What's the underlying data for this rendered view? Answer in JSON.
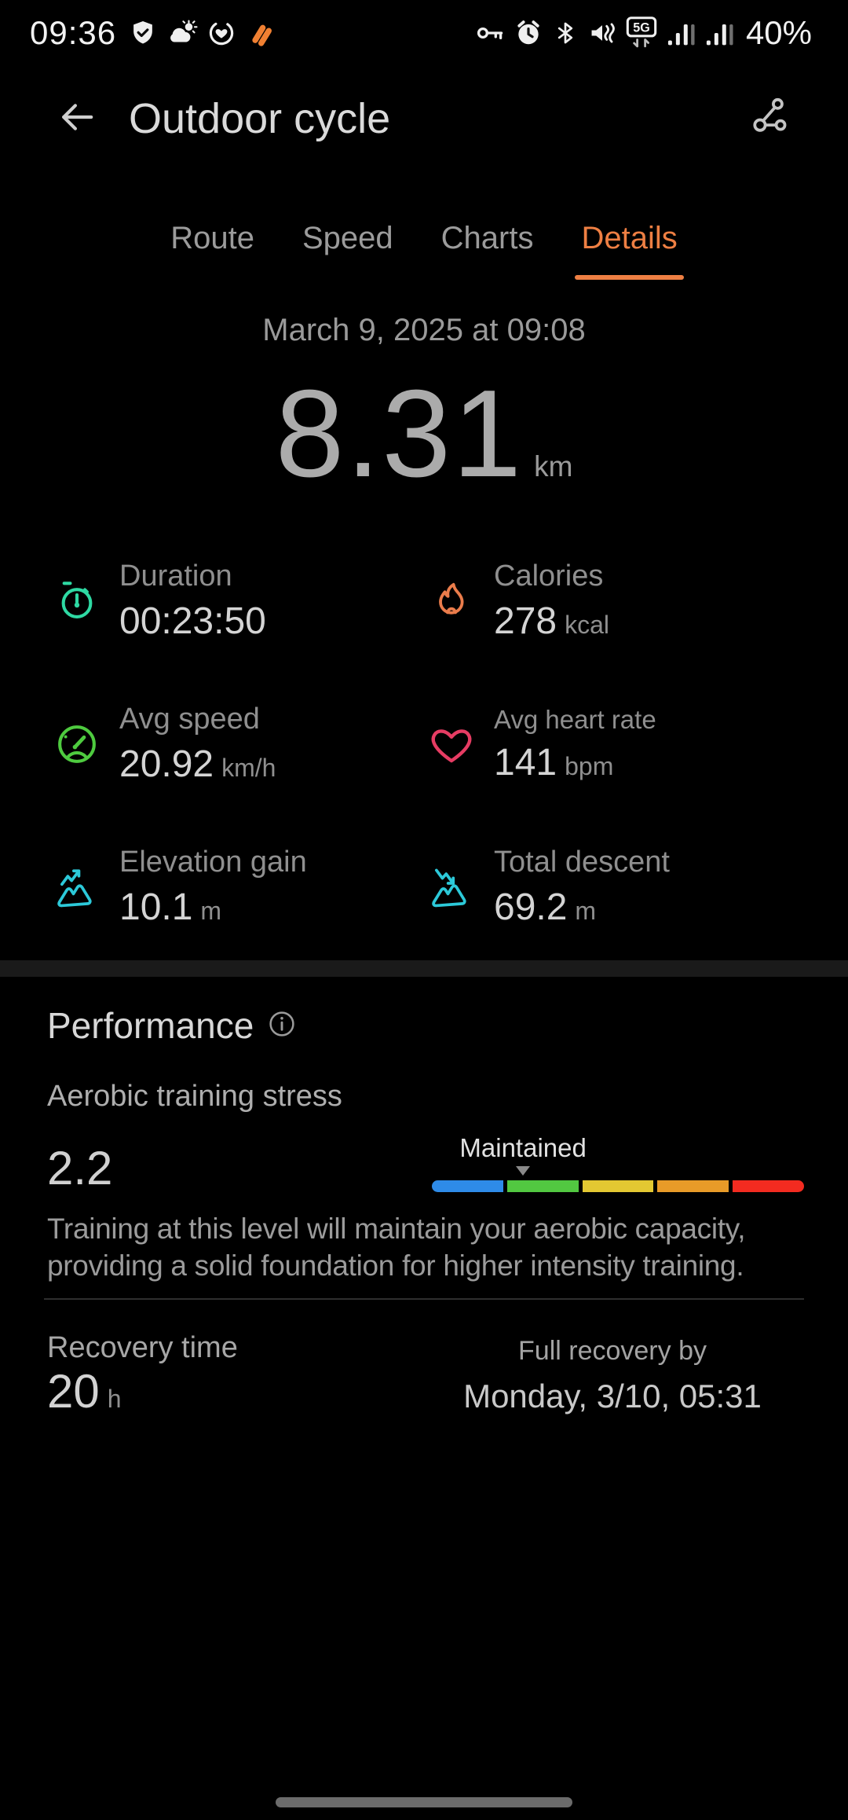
{
  "status_bar": {
    "time": "09:36",
    "battery": "40%",
    "left_icons": [
      "shield-check-icon",
      "weather-icon",
      "health-ring-icon",
      "health-logo-icon"
    ],
    "right_icons": [
      "key-icon",
      "alarm-icon",
      "bluetooth-icon",
      "mute-vibrate-icon",
      "network-5g-icon",
      "signal-bars-icon",
      "signal-bars-icon"
    ]
  },
  "header": {
    "title": "Outdoor cycle",
    "back_icon": "back-arrow-icon",
    "share_icon": "share-route-icon"
  },
  "tabs": [
    {
      "label": "Route",
      "active": false
    },
    {
      "label": "Speed",
      "active": false
    },
    {
      "label": "Charts",
      "active": false
    },
    {
      "label": "Details",
      "active": true
    }
  ],
  "summary": {
    "datetime": "March 9, 2025 at 09:08",
    "distance": "8.31",
    "distance_unit": "km"
  },
  "stats": [
    {
      "label": "Duration",
      "value": "00:23:50",
      "unit": "",
      "icon": "stopwatch-icon",
      "color": "#2ed9a3"
    },
    {
      "label": "Calories",
      "value": "278",
      "unit": "kcal",
      "icon": "flame-icon",
      "color": "#ea7c4b"
    },
    {
      "label": "Avg speed",
      "value": "20.92",
      "unit": "km/h",
      "icon": "speedometer-icon",
      "color": "#4ecb3f"
    },
    {
      "label": "Avg heart rate",
      "value": "141",
      "unit": "bpm",
      "icon": "heart-icon",
      "color": "#e63c63"
    },
    {
      "label": "Elevation gain",
      "value": "10.1",
      "unit": "m",
      "icon": "mountain-up-icon",
      "color": "#2cc9d9"
    },
    {
      "label": "Total descent",
      "value": "69.2",
      "unit": "m",
      "icon": "mountain-down-icon",
      "color": "#2cc9d9"
    }
  ],
  "performance": {
    "title": "Performance",
    "aerobic": {
      "label": "Aerobic training stress",
      "value": "2.2",
      "level": "Maintained",
      "marker_pct": 24.5,
      "scale_colors": [
        "#2e8be8",
        "#52c841",
        "#e3c832",
        "#e89b28",
        "#f32b20"
      ],
      "description": "Training at this level will maintain your aerobic capacity, providing a solid foundation for higher intensity training."
    },
    "recovery": {
      "label": "Recovery time",
      "value": "20",
      "unit": "h",
      "full_recovery_label": "Full recovery by",
      "full_recovery_value": "Monday, 3/10, 05:31"
    }
  }
}
